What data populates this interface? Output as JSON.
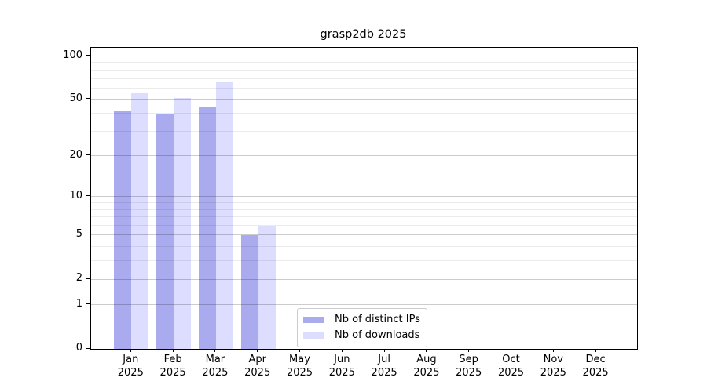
{
  "figure": {
    "background": "#ffffff"
  },
  "chart_data": {
    "type": "bar",
    "title": "grasp2db 2025",
    "x_year_label": "2025",
    "categories": [
      "Jan",
      "Feb",
      "Mar",
      "Apr",
      "May",
      "Jun",
      "Jul",
      "Aug",
      "Sep",
      "Oct",
      "Nov",
      "Dec"
    ],
    "series": [
      {
        "name": "Nb of distinct IPs",
        "color": "#aaaaee",
        "values": [
          42,
          39,
          44,
          5,
          null,
          null,
          null,
          null,
          null,
          null,
          null,
          null
        ]
      },
      {
        "name": "Nb of downloads",
        "color": "#ddddff",
        "values": [
          56,
          51,
          66,
          6,
          null,
          null,
          null,
          null,
          null,
          null,
          null,
          null
        ]
      }
    ],
    "y_scale": "log10(1+y)",
    "y_ticks": [
      0,
      1,
      2,
      5,
      10,
      20,
      50,
      100
    ],
    "y_minor_ticks": [
      3,
      4,
      6,
      7,
      8,
      9,
      30,
      40,
      60,
      70,
      80,
      90
    ],
    "ylim": [
      0,
      110
    ],
    "grid": "horizontal",
    "legend_position": "lower-center-inside"
  },
  "colors": {
    "axis": "#000000",
    "grid_major": "rgba(0,0,0,0.20)",
    "grid_minor": "rgba(0,0,0,0.08)",
    "legend_border": "#cccccc",
    "legend_background": "rgba(255,255,255,0.9)",
    "bar_distinct_ips": "#aaaaee",
    "bar_downloads": "#ddddff"
  }
}
